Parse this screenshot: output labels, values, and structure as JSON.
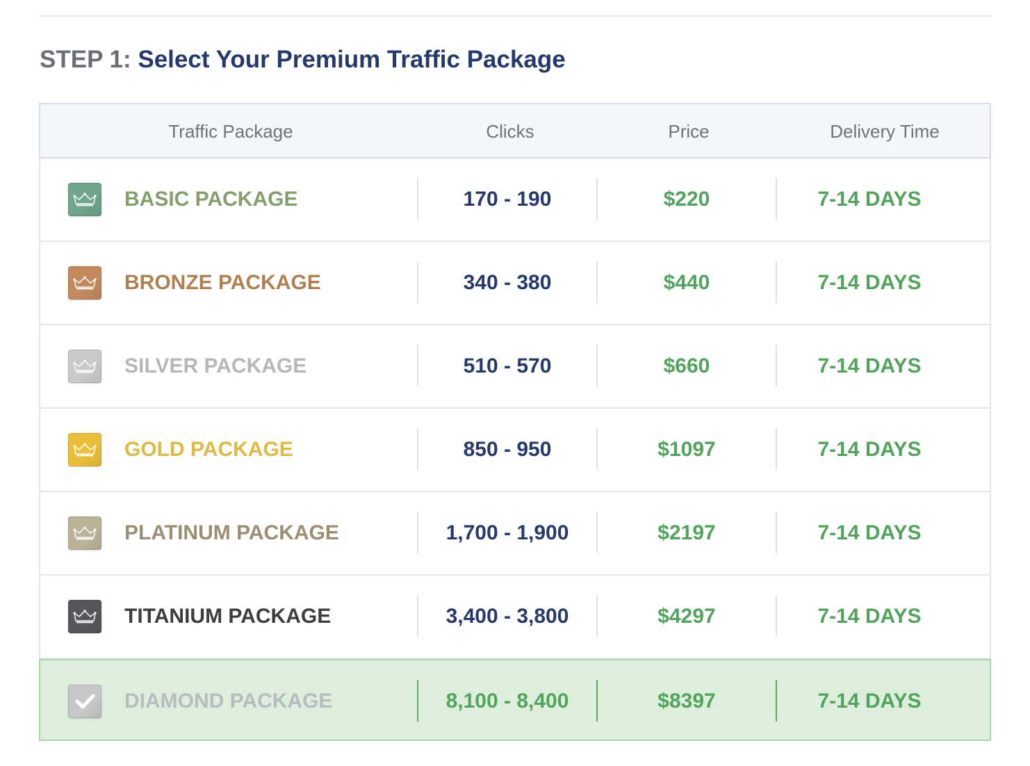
{
  "heading": {
    "step": "STEP 1:",
    "title": "Select Your Premium Traffic Package"
  },
  "table": {
    "columns": [
      "Traffic Package",
      "Clicks",
      "Price",
      "Delivery Time"
    ],
    "rows": [
      {
        "name": "BASIC PACKAGE",
        "clicks": "170 - 190",
        "price": "$220",
        "delivery": "7-14 DAYS",
        "name_color": "#84a06a",
        "badge_color": "#6fa58a",
        "icon": "crown-icon",
        "selected": false
      },
      {
        "name": "BRONZE PACKAGE",
        "clicks": "340 - 380",
        "price": "$440",
        "delivery": "7-14 DAYS",
        "name_color": "#b08150",
        "badge_color": "#c28a5e",
        "icon": "crown-icon",
        "selected": false
      },
      {
        "name": "SILVER PACKAGE",
        "clicks": "510 - 570",
        "price": "$660",
        "delivery": "7-14 DAYS",
        "name_color": "#b5b7ba",
        "badge_color": "#c7c9cb",
        "icon": "crown-icon",
        "selected": false
      },
      {
        "name": "GOLD PACKAGE",
        "clicks": "850 - 950",
        "price": "$1097",
        "delivery": "7-14 DAYS",
        "name_color": "#e0b944",
        "badge_color": "#e9bf38",
        "icon": "crown-icon",
        "selected": false
      },
      {
        "name": "PLATINUM PACKAGE",
        "clicks": "1,700 - 1,900",
        "price": "$2197",
        "delivery": "7-14 DAYS",
        "name_color": "#9b8f73",
        "badge_color": "#bbb298",
        "icon": "crown-icon",
        "selected": false
      },
      {
        "name": "TITANIUM PACKAGE",
        "clicks": "3,400 - 3,800",
        "price": "$4297",
        "delivery": "7-14 DAYS",
        "name_color": "#3b3d40",
        "badge_color": "#55575a",
        "icon": "crown-icon",
        "selected": false
      },
      {
        "name": "DIAMOND PACKAGE",
        "clicks": "8,100 - 8,400",
        "price": "$8397",
        "delivery": "7-14 DAYS",
        "name_color": "#b9bcbf",
        "badge_color": "#c6c8ca",
        "icon": "checkmark-icon",
        "selected": true
      }
    ]
  },
  "colors": {
    "heading_title": "#253a6b",
    "clicks_text": "#253a6b",
    "price_text": "#52a45c",
    "selected_row_bg": "#ddeedd"
  }
}
